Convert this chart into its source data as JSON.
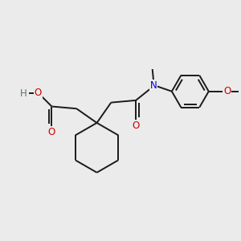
{
  "bg_color": "#ebebeb",
  "bond_color": "#1a1a1a",
  "line_width": 1.4,
  "atom_colors": {
    "O": "#cc0000",
    "N": "#0000cc",
    "H": "#607070",
    "C": "#1a1a1a"
  },
  "font_size": 8.5
}
